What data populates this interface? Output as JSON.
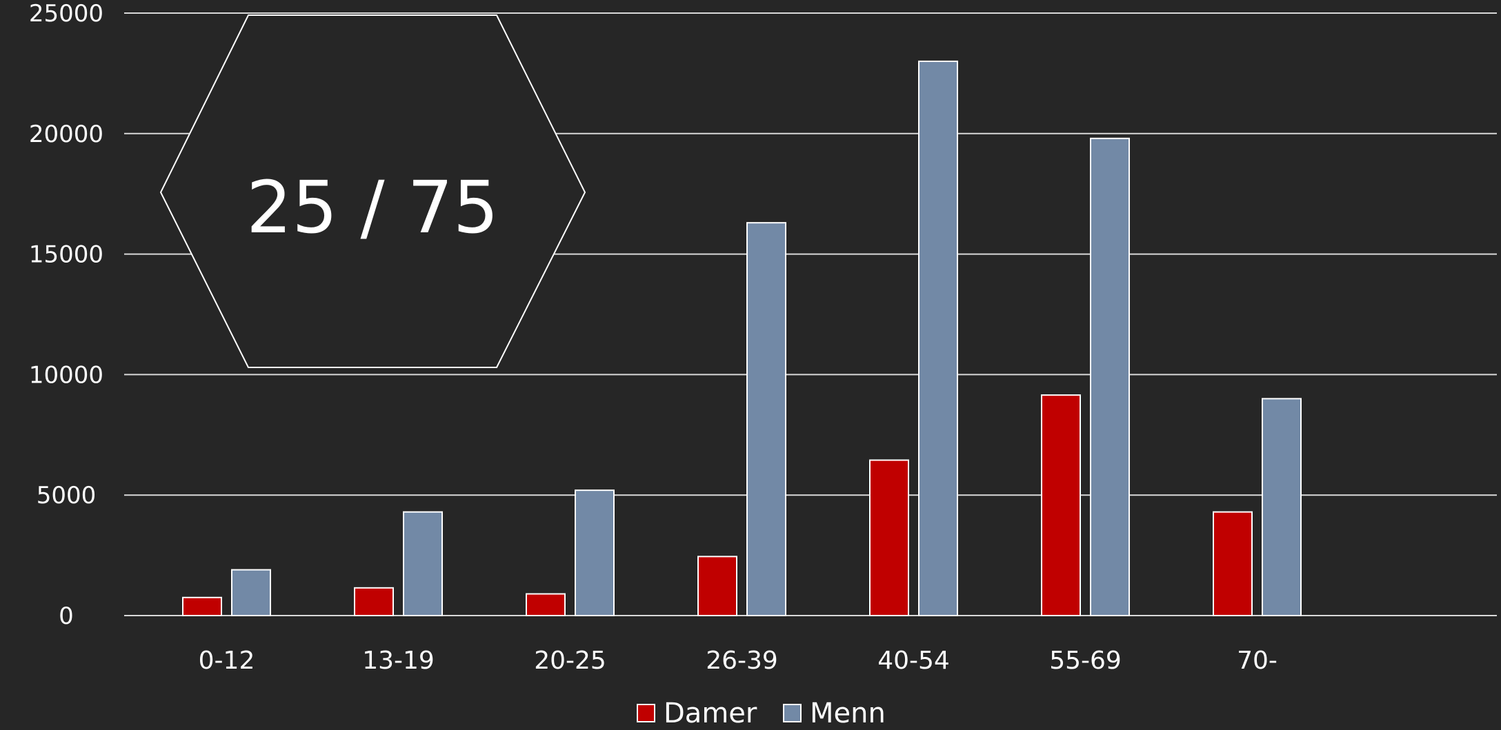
{
  "chart_data": {
    "type": "bar",
    "categories": [
      "0-12",
      "13-19",
      "20-25",
      "26-39",
      "40-54",
      "55-69",
      "70-"
    ],
    "series": [
      {
        "name": "Damer",
        "color": "#c00000",
        "values": [
          750,
          1150,
          900,
          2450,
          6450,
          9150,
          4300
        ]
      },
      {
        "name": "Menn",
        "color": "#7289a6",
        "values": [
          1900,
          4300,
          5200,
          16300,
          23000,
          19800,
          9000
        ]
      }
    ],
    "y_ticks": [
      "0",
      "5000",
      "10000",
      "15000",
      "20000",
      "25000"
    ],
    "ylim": [
      0,
      25000
    ],
    "grid": true,
    "legend_position": "bottom-center",
    "title": "",
    "xlabel": "",
    "ylabel": ""
  },
  "callout": {
    "shape": "hexagon",
    "text": "25 / 75"
  },
  "colors": {
    "background": "#262626",
    "grid": "#d9d9d9",
    "text": "#ffffff",
    "bar_outline": "#ffffff"
  }
}
